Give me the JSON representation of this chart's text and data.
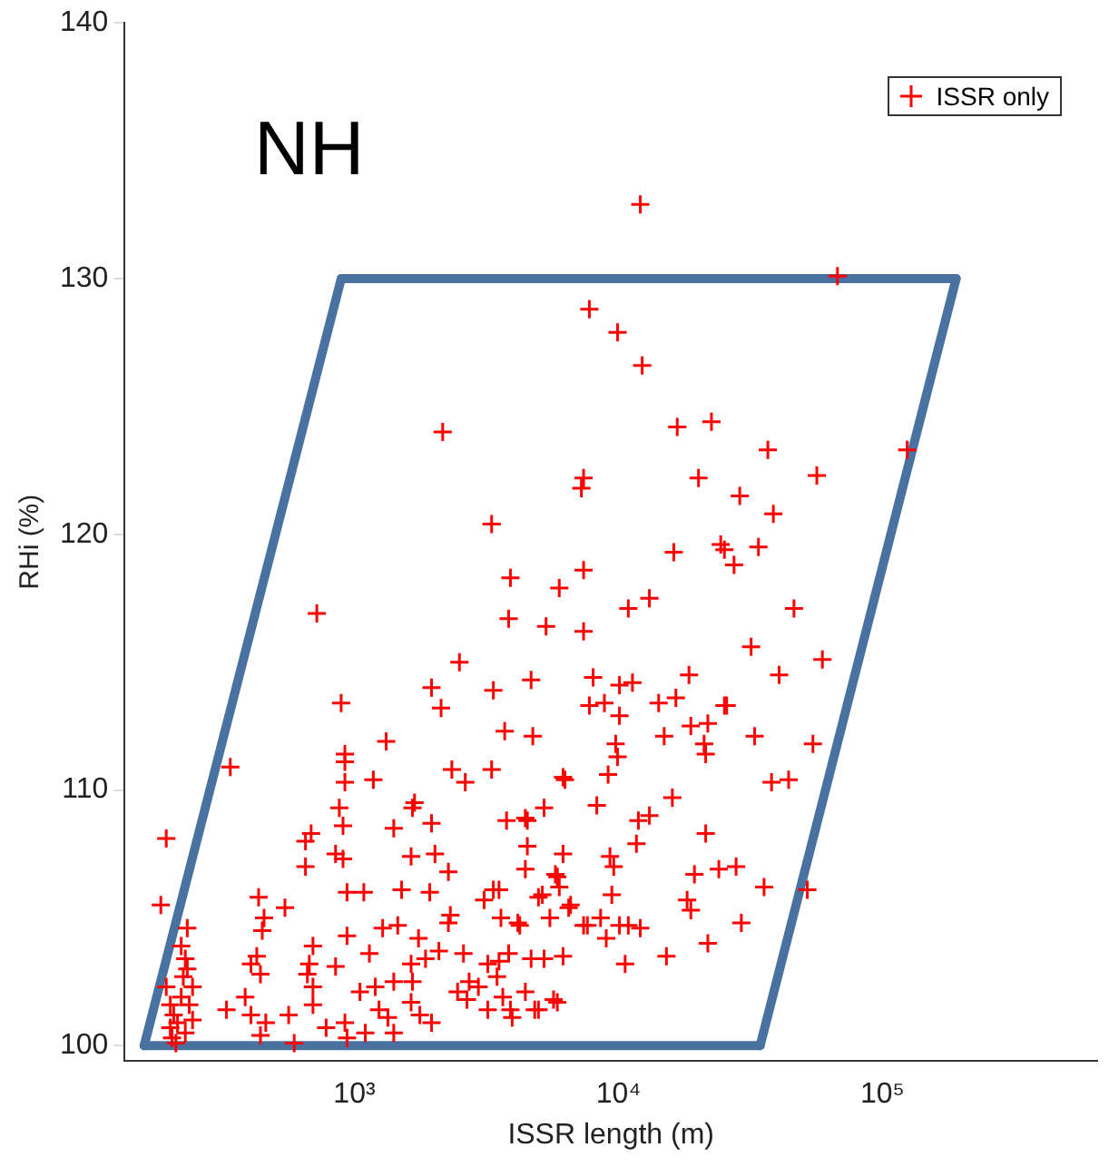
{
  "chart_data": {
    "type": "scatter",
    "xlabel": "ISSR length (m)",
    "ylabel": "RHi (%)",
    "log": "x",
    "xlim": [
      135,
      650000
    ],
    "xticks": [
      {
        "value": 1000,
        "label": "10³"
      },
      {
        "value": 10000,
        "label": "10⁴"
      },
      {
        "value": 100000,
        "label": "10⁵"
      }
    ],
    "ylim": [
      99.4,
      140
    ],
    "yticks": [
      100,
      110,
      120,
      130,
      140
    ],
    "grid": false,
    "legend": "top right",
    "marker": "cross",
    "annotations": [
      "NH"
    ],
    "series": [
      {
        "name": "ISSR only",
        "type": "scatter",
        "color": "#ff0000",
        "x": [
          12100,
          7760,
          9920,
          12300,
          2160,
          16700,
          22500,
          36800,
          124000,
          7380,
          7240,
          20100,
          56400,
          28800,
          38600,
          3310,
          67500,
          3900,
          7380,
          5970,
          16200,
          24400,
          25200,
          33900,
          27400,
          13100,
          10900,
          3840,
          5320,
          7380,
          46200,
          31800,
          59200,
          40600,
          2500,
          1960,
          2130,
          3360,
          4670,
          8020,
          10090,
          11300,
          18500,
          7760,
          8850,
          10090,
          14200,
          16500,
          25200,
          721,
          54500,
          38000,
          44100,
          51900,
          35600,
          29200,
          21800,
          15200,
          21400,
          19400,
          24000,
          27900,
          32800,
          25700,
          14900,
          18800,
          21800,
          21100,
          21400,
          9760,
          9920,
          9140,
          6270,
          16000,
          8280,
          5230,
          3770,
          4520,
          11900,
          13100,
          11700,
          4520,
          6170,
          4440,
          9290,
          9600,
          5770,
          5970,
          9440,
          4980,
          3360,
          3100,
          18200,
          18800,
          10090,
          10900,
          12100,
          6480,
          5500,
          4160,
          7380,
          8560,
          8990,
          10600,
          3840,
          4670,
          5230,
          6170,
          3200,
          3470,
          2950,
          3650,
          4440,
          5680,
          4820,
          3200,
          3960,
          339,
          194,
          185,
          233,
          221,
          229,
          194,
          201,
          207,
          214,
          221,
          229,
          237,
          244,
          204,
          211,
          225,
          233,
          244,
          201,
          891,
          921,
          921,
          921,
          877,
          906,
          849,
          906,
          653,
          686,
          653,
          1320,
          1180,
          3710,
          4740,
          2340,
          2630,
          3310,
          6170,
          1690,
          1660,
          1410,
          1960,
          4440,
          1640,
          2020,
          2270,
          5870,
          3530,
          5150,
          938,
          1086,
          434,
          546,
          1510,
          1930,
          2310,
          2270,
          3590,
          4230,
          6590,
          7630,
          455,
          448,
          427,
          441,
          406,
          697,
          675,
          664,
          697,
          849,
          938,
          1140,
          1280,
          1460,
          1640,
          1860,
          2090,
          1750,
          2590,
          3530,
          2720,
          2460,
          2670,
          1200,
          1050,
          1410,
          1660,
          1640,
          1770,
          1240,
          1340,
          1960,
          328,
          386,
          406,
          462,
          441,
          564,
          697,
          782,
          921,
          938,
          4980,
          5870,
          3900,
          1100,
          1410,
          592
        ],
        "values": [
          132.9,
          128.8,
          127.9,
          126.6,
          124.0,
          124.2,
          124.4,
          123.3,
          123.3,
          122.2,
          121.8,
          122.2,
          122.3,
          121.5,
          120.8,
          120.4,
          130.1,
          118.3,
          118.6,
          117.9,
          119.3,
          119.6,
          119.4,
          119.5,
          118.8,
          117.5,
          117.1,
          116.7,
          116.4,
          116.2,
          117.1,
          115.6,
          115.1,
          114.5,
          115.0,
          114.0,
          113.2,
          113.9,
          114.3,
          114.4,
          114.1,
          114.2,
          114.5,
          113.3,
          113.4,
          112.9,
          113.4,
          113.6,
          113.3,
          116.9,
          111.8,
          110.3,
          110.4,
          106.1,
          106.2,
          104.8,
          104.0,
          103.5,
          108.3,
          106.7,
          106.9,
          107.0,
          112.1,
          113.3,
          112.1,
          112.5,
          112.6,
          111.8,
          111.4,
          111.8,
          111.3,
          110.6,
          110.4,
          109.7,
          109.4,
          109.3,
          108.8,
          108.8,
          108.8,
          109.0,
          107.9,
          107.8,
          107.5,
          106.9,
          107.4,
          107.0,
          106.7,
          106.2,
          105.9,
          105.8,
          106.1,
          105.7,
          105.7,
          105.3,
          104.7,
          104.7,
          104.6,
          105.4,
          105.0,
          104.8,
          104.7,
          105.0,
          104.2,
          103.2,
          103.6,
          103.4,
          103.4,
          103.5,
          103.2,
          102.7,
          102.3,
          101.9,
          102.1,
          101.8,
          101.4,
          101.4,
          101.1,
          110.9,
          108.1,
          105.5,
          104.6,
          103.9,
          103.4,
          102.3,
          101.6,
          101.2,
          100.9,
          101.9,
          100.5,
          101.6,
          101.0,
          100.3,
          100.1,
          102.7,
          103.0,
          102.3,
          100.7,
          113.4,
          111.4,
          111.1,
          110.3,
          109.3,
          108.6,
          107.5,
          107.3,
          108.0,
          108.3,
          107.0,
          111.9,
          110.4,
          112.3,
          112.1,
          110.8,
          110.3,
          110.8,
          110.5,
          109.5,
          109.3,
          108.5,
          108.7,
          108.9,
          107.4,
          107.5,
          106.8,
          106.6,
          106.1,
          105.9,
          106.0,
          106.0,
          105.8,
          105.4,
          106.1,
          106.0,
          105.1,
          104.8,
          105.0,
          104.7,
          105.5,
          104.7,
          105.0,
          104.5,
          103.5,
          102.8,
          103.2,
          103.9,
          103.2,
          102.8,
          102.3,
          103.1,
          104.3,
          103.6,
          104.6,
          104.7,
          103.2,
          103.4,
          103.7,
          104.2,
          103.6,
          103.3,
          102.5,
          102.1,
          101.8,
          102.3,
          102.1,
          102.5,
          102.5,
          101.7,
          101.2,
          101.4,
          101.1,
          100.9,
          101.4,
          101.9,
          101.2,
          100.9,
          100.4,
          101.2,
          101.6,
          100.7,
          100.9,
          100.3,
          101.4,
          101.7,
          101.4,
          100.5,
          100.5,
          100.1
        ]
      },
      {
        "type": "line",
        "color": "#4a72a0",
        "marker": "none",
        "x": [
          160,
          892
        ],
        "values": [
          100,
          130
        ]
      },
      {
        "type": "line",
        "color": "#4a72a0",
        "marker": "none",
        "x": [
          892,
          190000
        ],
        "values": [
          130,
          130
        ]
      },
      {
        "type": "line",
        "color": "#4a72a0",
        "marker": "none",
        "x": [
          34400,
          190000
        ],
        "values": [
          100,
          130
        ]
      },
      {
        "type": "line",
        "color": "#4a72a0",
        "marker": "none",
        "x": [
          160,
          34400
        ],
        "values": [
          100,
          100
        ]
      }
    ]
  }
}
